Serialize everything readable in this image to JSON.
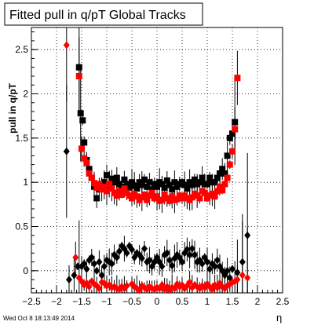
{
  "chart_data": {
    "type": "scatter",
    "title": "Fitted pull in q/pT  Global Tracks",
    "xlabel": "η",
    "ylabel": "pull in q/pT",
    "xlim": [
      -2.5,
      2.5
    ],
    "ylim": [
      -0.25,
      2.75
    ],
    "x_ticks": [
      "−2.5",
      "−2",
      "−1.5",
      "−1",
      "−0.5",
      "0",
      "0.5",
      "1",
      "1.5",
      "2",
      "2.5"
    ],
    "y_ticks": [
      "0",
      "0.5",
      "1",
      "1.5",
      "2",
      "2.5"
    ],
    "grid": true,
    "timestamp": "Wed Oct  8 18:13:49 2014",
    "series": [
      {
        "marker": "square",
        "color": "#000000",
        "x": [
          -1.55,
          -1.52,
          -1.48,
          -1.45,
          -1.4,
          -1.35,
          -1.3,
          -1.25,
          -1.2,
          -1.15,
          -1.1,
          -1.05,
          -1.0,
          -0.95,
          -0.9,
          -0.85,
          -0.8,
          -0.75,
          -0.7,
          -0.65,
          -0.6,
          -0.55,
          -0.5,
          -0.45,
          -0.4,
          -0.35,
          -0.3,
          -0.25,
          -0.2,
          -0.15,
          -0.1,
          -0.05,
          0.0,
          0.05,
          0.1,
          0.15,
          0.2,
          0.25,
          0.3,
          0.35,
          0.4,
          0.45,
          0.5,
          0.55,
          0.6,
          0.65,
          0.7,
          0.75,
          0.8,
          0.85,
          0.9,
          0.95,
          1.0,
          1.05,
          1.1,
          1.15,
          1.2,
          1.25,
          1.3,
          1.35,
          1.4,
          1.45,
          1.5,
          1.55
        ],
        "y": [
          2.3,
          1.78,
          1.7,
          1.45,
          1.25,
          1.15,
          1.05,
          0.95,
          0.82,
          0.92,
          0.98,
          1.0,
          1.08,
          0.97,
          1.04,
          1.0,
          1.05,
          0.98,
          0.95,
          1.03,
          0.98,
          0.94,
          1.0,
          0.96,
          0.93,
          1.0,
          0.97,
          1.03,
          0.95,
          1.0,
          0.92,
          0.98,
          0.95,
          1.0,
          0.98,
          0.94,
          1.02,
          0.97,
          0.92,
          1.0,
          0.95,
          0.98,
          1.0,
          0.97,
          0.93,
          1.0,
          0.97,
          1.03,
          0.98,
          1.0,
          1.05,
          0.98,
          0.98,
          1.05,
          1.0,
          1.0,
          1.05,
          1.1,
          1.15,
          1.1,
          1.3,
          1.5,
          1.55,
          1.68
        ]
      },
      {
        "marker": "square",
        "color": "#ff0000",
        "x": [
          -1.55,
          -1.5,
          -1.45,
          -1.4,
          -1.35,
          -1.3,
          -1.25,
          -1.2,
          -1.15,
          -1.1,
          -1.05,
          -1.0,
          -0.95,
          -0.9,
          -0.85,
          -0.8,
          -0.75,
          -0.7,
          -0.65,
          -0.6,
          -0.55,
          -0.5,
          -0.45,
          -0.4,
          -0.35,
          -0.3,
          -0.25,
          -0.2,
          -0.15,
          -0.1,
          -0.05,
          0.0,
          0.05,
          0.1,
          0.15,
          0.2,
          0.25,
          0.3,
          0.35,
          0.4,
          0.45,
          0.5,
          0.55,
          0.6,
          0.65,
          0.7,
          0.75,
          0.8,
          0.85,
          0.9,
          0.95,
          1.0,
          1.05,
          1.1,
          1.15,
          1.2,
          1.25,
          1.3,
          1.35,
          1.4,
          1.45,
          1.5,
          1.55,
          1.6
        ],
        "y": [
          2.2,
          1.38,
          1.27,
          1.22,
          1.1,
          1.05,
          0.99,
          0.94,
          0.98,
          0.92,
          0.95,
          0.9,
          0.98,
          0.93,
          0.88,
          0.85,
          0.9,
          0.86,
          0.93,
          0.88,
          0.85,
          0.82,
          0.87,
          0.84,
          0.8,
          0.83,
          0.86,
          0.8,
          0.85,
          0.88,
          0.82,
          0.84,
          0.79,
          0.8,
          0.86,
          0.82,
          0.79,
          0.84,
          0.8,
          0.81,
          0.85,
          0.82,
          0.85,
          0.82,
          0.8,
          0.83,
          0.87,
          0.85,
          0.82,
          0.9,
          0.88,
          0.82,
          0.85,
          0.87,
          0.84,
          0.9,
          0.95,
          0.91,
          0.98,
          1.05,
          1.2,
          1.35,
          1.6,
          2.18
        ]
      },
      {
        "marker": "diamond",
        "color": "#000000",
        "x": [
          -1.8,
          -1.75,
          -1.65,
          -1.58,
          -1.5,
          -1.45,
          -1.4,
          -1.35,
          -1.3,
          -1.25,
          -1.2,
          -1.15,
          -1.1,
          -1.05,
          -1.0,
          -0.95,
          -0.9,
          -0.85,
          -0.8,
          -0.75,
          -0.7,
          -0.65,
          -0.6,
          -0.55,
          -0.5,
          -0.45,
          -0.4,
          -0.35,
          -0.3,
          -0.25,
          -0.2,
          -0.15,
          -0.1,
          -0.05,
          0.0,
          0.05,
          0.1,
          0.15,
          0.2,
          0.25,
          0.3,
          0.35,
          0.4,
          0.45,
          0.5,
          0.55,
          0.6,
          0.65,
          0.7,
          0.75,
          0.8,
          0.85,
          0.9,
          0.95,
          1.0,
          1.05,
          1.1,
          1.15,
          1.2,
          1.25,
          1.3,
          1.35,
          1.4,
          1.45,
          1.5,
          1.6,
          1.7,
          1.8
        ],
        "y": [
          1.35,
          -0.1,
          -0.05,
          0.05,
          0.05,
          0.08,
          0.02,
          0.12,
          0.15,
          0.08,
          0.0,
          0.1,
          -0.05,
          0.05,
          0.12,
          0.1,
          0.08,
          0.18,
          0.15,
          0.22,
          0.28,
          0.25,
          0.2,
          0.28,
          0.24,
          0.15,
          0.2,
          0.18,
          0.14,
          0.25,
          0.1,
          0.12,
          0.05,
          0.1,
          0.15,
          0.1,
          0.05,
          0.18,
          0.2,
          0.12,
          0.06,
          0.14,
          0.18,
          0.15,
          0.1,
          0.2,
          0.24,
          0.18,
          0.25,
          0.18,
          0.1,
          0.12,
          0.08,
          0.15,
          0.1,
          0.02,
          0.08,
          0.05,
          0.12,
          0.05,
          0.0,
          -0.05,
          0.0,
          -0.08,
          0.02,
          -0.02,
          0.1,
          0.4
        ]
      },
      {
        "marker": "diamond",
        "color": "#ff0000",
        "x": [
          -1.8,
          -1.62,
          -1.55,
          -1.5,
          -1.45,
          -1.4,
          -1.35,
          -1.3,
          -1.25,
          -1.2,
          -1.15,
          -1.1,
          -1.05,
          -1.0,
          -0.95,
          -0.9,
          -0.85,
          -0.8,
          -0.75,
          -0.7,
          -0.65,
          -0.6,
          -0.5,
          -0.45,
          -0.4,
          -0.35,
          -0.3,
          -0.25,
          -0.2,
          -0.15,
          -0.1,
          -0.05,
          0.0,
          0.05,
          0.1,
          0.15,
          0.2,
          0.25,
          0.3,
          0.35,
          0.4,
          0.45,
          0.5,
          0.55,
          0.6,
          0.65,
          0.7,
          0.75,
          0.8,
          0.85,
          0.9,
          0.95,
          1.0,
          1.05,
          1.1,
          1.15,
          1.2,
          1.25,
          1.3,
          1.35,
          1.4,
          1.45,
          1.5,
          1.55,
          1.6,
          1.7,
          1.8
        ],
        "y": [
          2.55,
          0.15,
          -0.08,
          -0.12,
          -0.16,
          -0.14,
          -0.18,
          -0.12,
          -0.15,
          -0.17,
          -0.2,
          -0.13,
          -0.14,
          -0.17,
          -0.16,
          -0.19,
          -0.18,
          -0.2,
          -0.21,
          -0.18,
          -0.2,
          -0.17,
          -0.15,
          -0.18,
          -0.2,
          -0.22,
          -0.17,
          -0.19,
          -0.21,
          -0.18,
          -0.2,
          -0.21,
          -0.19,
          -0.2,
          -0.16,
          -0.21,
          -0.18,
          -0.22,
          -0.19,
          -0.2,
          -0.15,
          -0.18,
          -0.16,
          -0.2,
          -0.17,
          -0.13,
          -0.19,
          -0.16,
          -0.18,
          -0.2,
          -0.17,
          -0.19,
          -0.15,
          -0.18,
          -0.21,
          -0.16,
          -0.19,
          -0.14,
          -0.18,
          -0.2,
          -0.17,
          -0.15,
          -0.13,
          -0.12,
          -0.1,
          -0.05,
          -0.08
        ]
      }
    ]
  }
}
